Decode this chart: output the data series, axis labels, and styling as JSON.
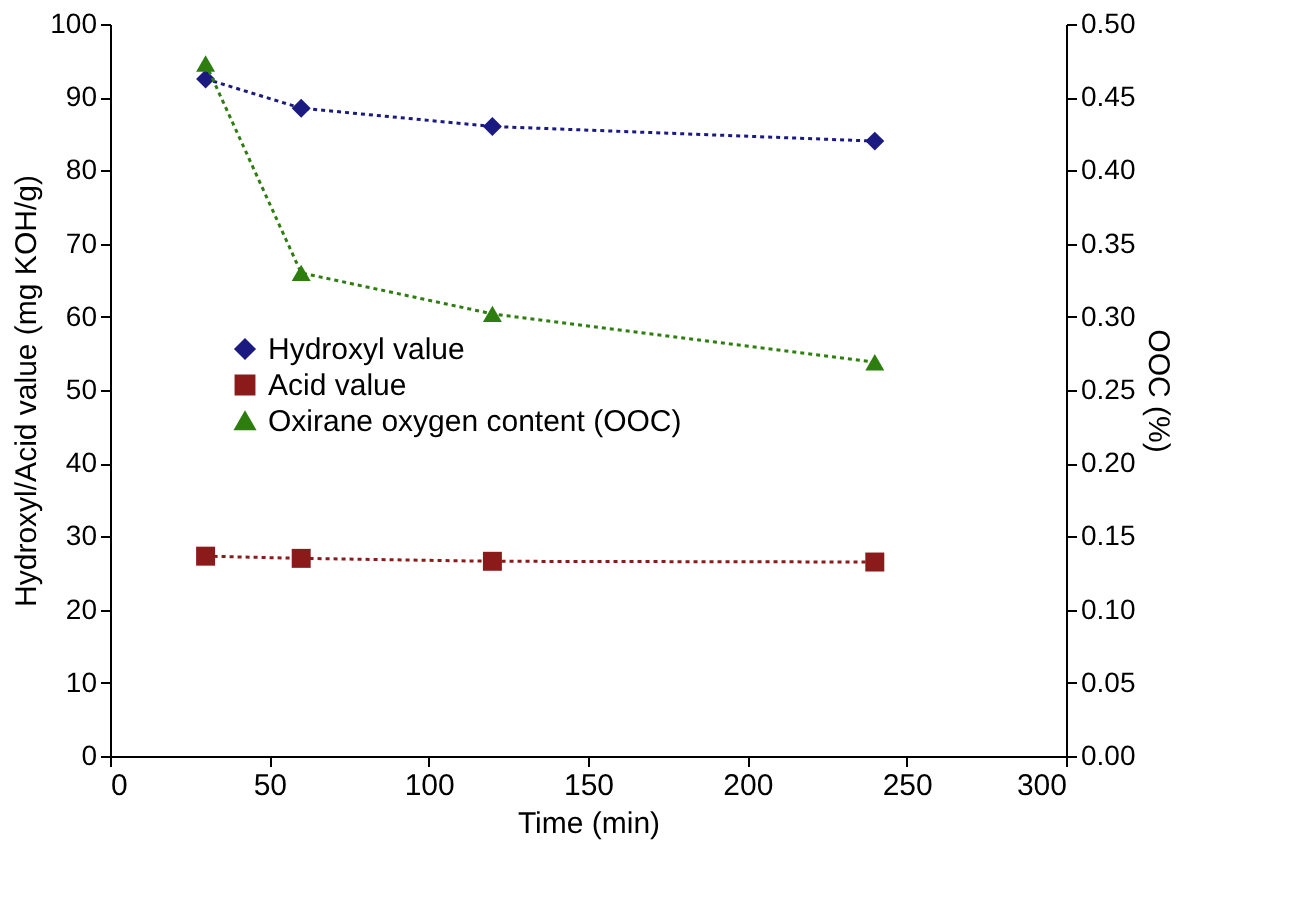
{
  "chart_data": {
    "type": "line",
    "xlabel": "Time (min)",
    "ylabel": "Hydroxyl/Acid value (mg KOH/g)",
    "y2label": "OOC (%)",
    "x": [
      30,
      60,
      120,
      240
    ],
    "series": [
      {
        "name": "Hydroxyl value",
        "color": "#1a1a80",
        "marker": "diamond",
        "values": [
          92.5,
          88.5,
          86,
          84
        ]
      },
      {
        "name": "Acid value",
        "color": "#8b1a1a",
        "marker": "square",
        "values": [
          27.3,
          27,
          26.6,
          26.5
        ]
      },
      {
        "name": "Oxirane oxygen content (OOC)",
        "color": "#2e7d0f",
        "marker": "triangle",
        "axis": "y2",
        "values": [
          0.473,
          0.33,
          0.302,
          0.269
        ]
      }
    ],
    "xlim": [
      0,
      300
    ],
    "xticks": [
      0,
      50,
      100,
      150,
      200,
      250,
      300
    ],
    "ylim": [
      0,
      100
    ],
    "yticks": [
      0,
      10,
      20,
      30,
      40,
      50,
      60,
      70,
      80,
      90,
      100
    ],
    "y2lim": [
      0,
      0.5
    ],
    "y2ticks": [
      {
        "value": 0,
        "label": "0.00"
      },
      0.05,
      {
        "value": 0.1,
        "label": "0.10"
      },
      0.15,
      {
        "value": 0.2,
        "label": "0.20"
      },
      0.25,
      {
        "value": 0.3,
        "label": "0.30"
      },
      0.35,
      {
        "value": 0.4,
        "label": "0.40"
      },
      0.45,
      {
        "value": 0.5,
        "label": "0.50"
      }
    ],
    "line_style": "dotted",
    "grid": false,
    "legend": "left"
  }
}
